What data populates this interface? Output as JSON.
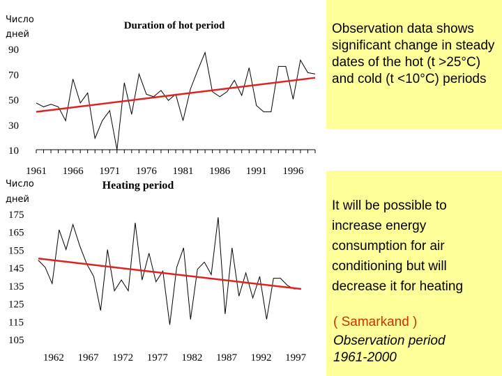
{
  "chart_data": [
    {
      "type": "line",
      "title": "Duration of hot period",
      "ylabel_lines": [
        "Число",
        "дней"
      ],
      "y_ticks": [
        "90",
        "70",
        "50",
        "30",
        "10"
      ],
      "ylim": [
        10,
        90
      ],
      "x_ticks": [
        "1961",
        "1966",
        "1971",
        "1976",
        "1981",
        "1986",
        "1991",
        "1996"
      ],
      "x": [
        1961,
        1962,
        1963,
        1964,
        1965,
        1966,
        1967,
        1968,
        1969,
        1970,
        1971,
        1972,
        1973,
        1974,
        1975,
        1976,
        1977,
        1978,
        1979,
        1980,
        1981,
        1982,
        1983,
        1984,
        1985,
        1986,
        1987,
        1988,
        1989,
        1990,
        1991,
        1992,
        1993,
        1994,
        1995,
        1996,
        1997,
        1998,
        1999
      ],
      "series": [
        {
          "values": [
            47,
            44,
            46,
            44,
            33,
            66,
            47,
            55,
            19,
            33,
            41,
            10,
            63,
            38,
            70,
            54,
            52,
            57,
            49,
            54,
            33,
            58,
            73,
            87,
            56,
            52,
            56,
            65,
            53,
            75,
            45,
            40,
            40,
            76,
            76,
            50,
            81,
            71,
            70
          ],
          "color": "#000000"
        }
      ],
      "trend": {
        "values": [
          40,
          67
        ],
        "color": "#dd2222"
      },
      "grid": false,
      "legend": "none"
    },
    {
      "type": "line",
      "title": "Heating period",
      "ylabel_lines": [
        "Число",
        "дней"
      ],
      "y_ticks": [
        "175",
        "165",
        "155",
        "145",
        "135",
        "125",
        "115",
        "105"
      ],
      "ylim": [
        105,
        175
      ],
      "x_ticks": [
        "1962",
        "1967",
        "1972",
        "1977",
        "1982",
        "1987",
        "1992",
        "1997"
      ],
      "x": [
        1961,
        1962,
        1963,
        1964,
        1965,
        1966,
        1967,
        1968,
        1969,
        1970,
        1971,
        1972,
        1973,
        1974,
        1975,
        1976,
        1977,
        1978,
        1979,
        1980,
        1981,
        1982,
        1983,
        1984,
        1985,
        1986,
        1987,
        1988,
        1989,
        1990,
        1991,
        1992,
        1993,
        1994,
        1995,
        1996,
        1997,
        1998,
        1999
      ],
      "series": [
        {
          "values": [
            149,
            145,
            136,
            166,
            155,
            169,
            157,
            147,
            140,
            121,
            155,
            132,
            138,
            132,
            170,
            138,
            153,
            137,
            143,
            113,
            145,
            156,
            116,
            144,
            148,
            141,
            173,
            119,
            156,
            129,
            142,
            128,
            140,
            116,
            139,
            139,
            135,
            133,
            133
          ],
          "color": "#000000"
        }
      ],
      "trend": {
        "values": [
          150,
          133
        ],
        "color": "#dd2222"
      },
      "grid": false,
      "legend": "none"
    }
  ],
  "notes": {
    "top_text": "Observation data shows significant change in steady dates of the hot (t >25°C) and cold (t <10°C) periods",
    "mid_text": "It will be possible to increase energy consumption for air conditioning but will decrease it for heating",
    "place_text": "( Samarkand )",
    "period_line1": "Observation period",
    "period_line2": "1961-2000"
  },
  "colors": {
    "panel": "#ffff99",
    "trend": "#dd2222",
    "place": "#cc3300"
  }
}
